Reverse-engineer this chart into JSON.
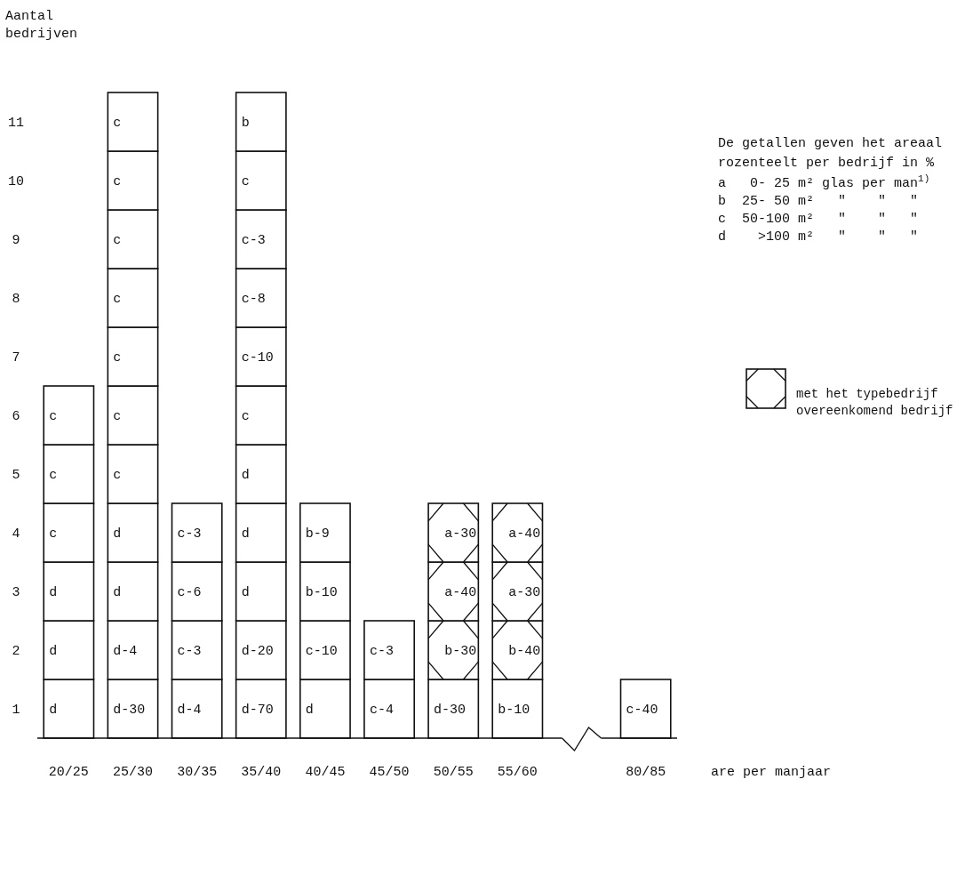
{
  "chart_data": {
    "type": "bar",
    "stacked": true,
    "ylabel": "Aantal bedrijven",
    "xlabel": "are per manjaar",
    "categories": [
      "20/25",
      "25/30",
      "30/35",
      "35/40",
      "40/45",
      "45/50",
      "50/55",
      "55/60",
      null,
      "80/85"
    ],
    "ylim": [
      0,
      11
    ],
    "yticks": [
      {
        "value": 0.5,
        "label": "1"
      },
      {
        "value": 1.5,
        "label": "2"
      },
      {
        "value": 2.5,
        "label": "3"
      },
      {
        "value": 3.5,
        "label": "4"
      },
      {
        "value": 4.5,
        "label": "5"
      },
      {
        "value": 5.5,
        "label": "6"
      },
      {
        "value": 6.5,
        "label": "7"
      },
      {
        "value": 7.5,
        "label": "8"
      },
      {
        "value": 8.5,
        "label": "9"
      },
      {
        "value": 9.5,
        "label": "10"
      },
      {
        "value": 10.5,
        "label": "11"
      }
    ],
    "legend": "right",
    "series": [
      {
        "color": "#ffffff",
        "values": [
          1,
          1,
          1,
          1,
          1,
          1,
          1,
          1,
          null,
          1
        ],
        "value_labels": [
          "d",
          "d-30",
          "d-4",
          "d-70",
          "d",
          "c-4",
          "d-30",
          "b-10",
          null,
          "c-40"
        ]
      },
      {
        "name": "met het typebedrijf overeenkomend bedrijf",
        "color": "#ffffff",
        "values": [
          null,
          null,
          null,
          null,
          null,
          null,
          1,
          1,
          null,
          null
        ],
        "value_labels": [
          null,
          null,
          null,
          null,
          null,
          null,
          "b-30",
          "b-40",
          null,
          null
        ]
      },
      {
        "color": "#ffffff",
        "values": [
          null,
          null,
          null,
          null,
          null,
          null,
          1,
          1,
          null,
          null
        ],
        "value_labels": [
          null,
          null,
          null,
          null,
          null,
          null,
          "a-40",
          "a-30",
          null,
          null
        ]
      },
      {
        "color": "#ffffff",
        "values": [
          null,
          null,
          null,
          null,
          null,
          null,
          1,
          1,
          null,
          null
        ],
        "value_labels": [
          null,
          null,
          null,
          null,
          null,
          null,
          "a-30",
          "a-40",
          null,
          null
        ]
      },
      {
        "color": "#ffffff",
        "values": [
          1,
          1,
          1,
          1,
          1,
          1,
          null,
          null,
          null,
          null
        ],
        "value_labels": [
          "d",
          "d-4",
          "c-3",
          "d-20",
          "c-10",
          "c-3",
          null,
          null,
          null,
          null
        ]
      },
      {
        "color": "#ffffff",
        "values": [
          1,
          1,
          1,
          1,
          1,
          null,
          null,
          null,
          null,
          null
        ],
        "value_labels": [
          "d",
          "d",
          "c-6",
          "d",
          "b-10",
          null,
          null,
          null,
          null,
          null
        ]
      },
      {
        "color": "#ffffff",
        "values": [
          1,
          1,
          1,
          1,
          1,
          null,
          null,
          null,
          null,
          null
        ],
        "value_labels": [
          "c",
          "d",
          "c-3",
          "d",
          "b-9",
          null,
          null,
          null,
          null,
          null
        ]
      },
      {
        "color": "#ffffff",
        "values": [
          1,
          1,
          null,
          1,
          null,
          null,
          null,
          null,
          null,
          null
        ],
        "value_labels": [
          "c",
          "c",
          null,
          "d",
          null,
          null,
          null,
          null,
          null,
          null
        ]
      },
      {
        "color": "#ffffff",
        "values": [
          1,
          1,
          null,
          1,
          null,
          null,
          null,
          null,
          null,
          null
        ],
        "value_labels": [
          "c",
          "c",
          null,
          "c",
          null,
          null,
          null,
          null,
          null,
          null
        ]
      },
      {
        "color": "#ffffff",
        "values": [
          null,
          1,
          null,
          1,
          null,
          null,
          null,
          null,
          null,
          null
        ],
        "value_labels": [
          null,
          "c",
          null,
          "c-10",
          null,
          null,
          null,
          null,
          null,
          null
        ]
      },
      {
        "color": "#ffffff",
        "values": [
          null,
          1,
          null,
          1,
          null,
          null,
          null,
          null,
          null,
          null
        ],
        "value_labels": [
          null,
          "c",
          null,
          "c-8",
          null,
          null,
          null,
          null,
          null,
          null
        ]
      },
      {
        "color": "#ffffff",
        "values": [
          null,
          1,
          null,
          1,
          null,
          null,
          null,
          null,
          null,
          null
        ],
        "value_labels": [
          null,
          "c",
          null,
          "c-3",
          null,
          null,
          null,
          null,
          null,
          null
        ]
      },
      {
        "color": "#ffffff",
        "values": [
          null,
          1,
          null,
          1,
          null,
          null,
          null,
          null,
          null,
          null
        ],
        "value_labels": [
          null,
          "c",
          null,
          "c",
          null,
          null,
          null,
          null,
          null,
          null
        ]
      },
      {
        "color": "#ffffff",
        "values": [
          null,
          1,
          null,
          1,
          null,
          null,
          null,
          null,
          null,
          null
        ],
        "value_labels": [
          null,
          "c",
          null,
          "b",
          null,
          null,
          null,
          null,
          null,
          null
        ]
      }
    ],
    "annotations": [
      "De getallen geven het areaal rozenteelt per bedrijf in %",
      "a   0- 25 m² glas per man$^{1)}$",
      "b  25- 50 m²   \"    \"   \"",
      "c  50-100 m²   \"    \"   \"",
      "d    >100 m²   \"    \"   \""
    ]
  }
}
